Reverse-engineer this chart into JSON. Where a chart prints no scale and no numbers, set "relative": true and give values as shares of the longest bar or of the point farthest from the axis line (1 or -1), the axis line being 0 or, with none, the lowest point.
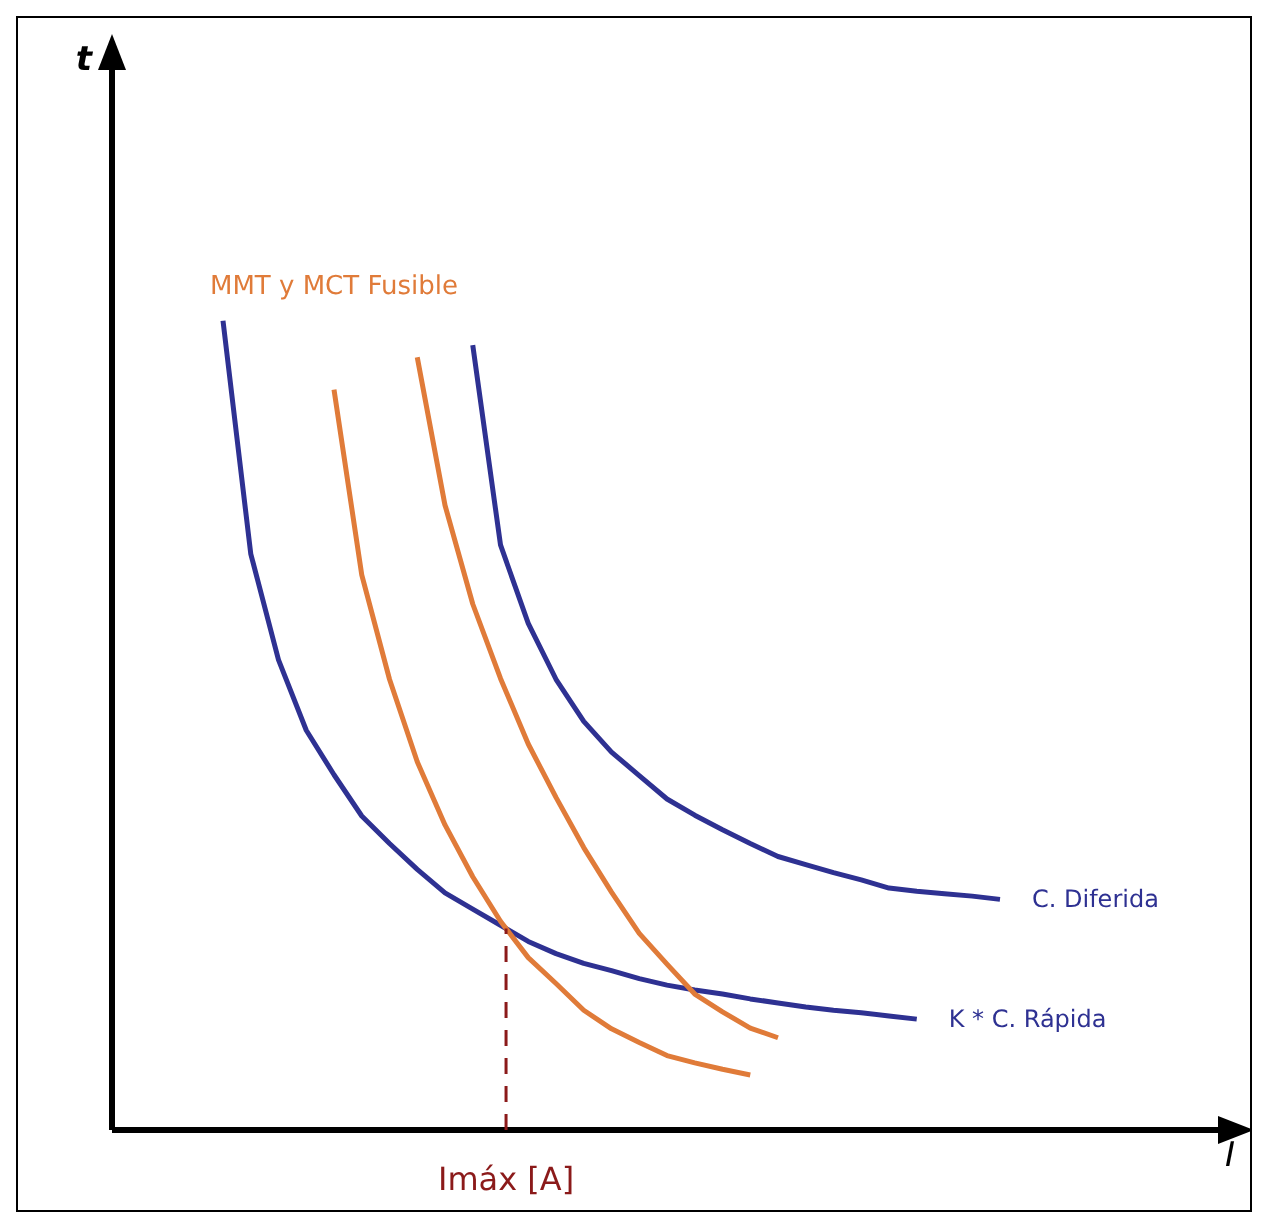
{
  "chart_data": {
    "type": "line",
    "relative": true,
    "grid": false,
    "legend": false,
    "marker": "none",
    "line_style": "solid",
    "categories": [
      null,
      null,
      null,
      null,
      null,
      null,
      null,
      null,
      null,
      null,
      null,
      null,
      null,
      null,
      null,
      null,
      null,
      null,
      null,
      null,
      null,
      null,
      null,
      null,
      null,
      null,
      null,
      null,
      null
    ],
    "series": [
      {
        "name": "K * C. Rápida",
        "color": "#2e3192",
        "values": [
          1.0,
          0.712,
          0.581,
          0.494,
          0.439,
          0.388,
          0.354,
          0.322,
          0.293,
          0.273,
          0.253,
          0.233,
          0.218,
          0.206,
          0.197,
          0.187,
          0.179,
          0.173,
          0.168,
          0.162,
          0.157,
          0.152,
          0.148,
          0.145,
          0.141,
          0.137,
          null,
          null,
          null
        ]
      },
      {
        "name": "C. Diferida",
        "color": "#2e3192",
        "values": [
          null,
          null,
          null,
          null,
          null,
          null,
          null,
          null,
          null,
          0.97,
          0.723,
          0.626,
          0.557,
          0.505,
          0.467,
          0.438,
          0.409,
          0.389,
          0.371,
          0.354,
          0.338,
          0.328,
          0.318,
          0.309,
          0.299,
          0.295,
          0.292,
          0.289,
          0.285
        ]
      },
      {
        "name": "MMT y MCT Fusible",
        "color": "#e07b39",
        "values": [
          null,
          null,
          null,
          null,
          0.915,
          0.686,
          0.557,
          0.455,
          0.377,
          0.313,
          0.258,
          0.213,
          0.181,
          0.148,
          0.125,
          0.108,
          0.092,
          0.083,
          0.075,
          0.068,
          null,
          null,
          null,
          null,
          null,
          null,
          null,
          null,
          null
        ]
      },
      {
        "color": "#e07b39",
        "values": [
          null,
          null,
          null,
          null,
          null,
          null,
          null,
          0.955,
          0.772,
          0.65,
          0.558,
          0.477,
          0.411,
          0.349,
          0.294,
          0.243,
          0.205,
          0.168,
          0.146,
          0.126,
          0.114,
          null,
          null,
          null,
          null,
          null,
          null,
          null,
          null
        ]
      }
    ],
    "annotations": [
      "t",
      "I",
      "Imáx [A]"
    ]
  }
}
